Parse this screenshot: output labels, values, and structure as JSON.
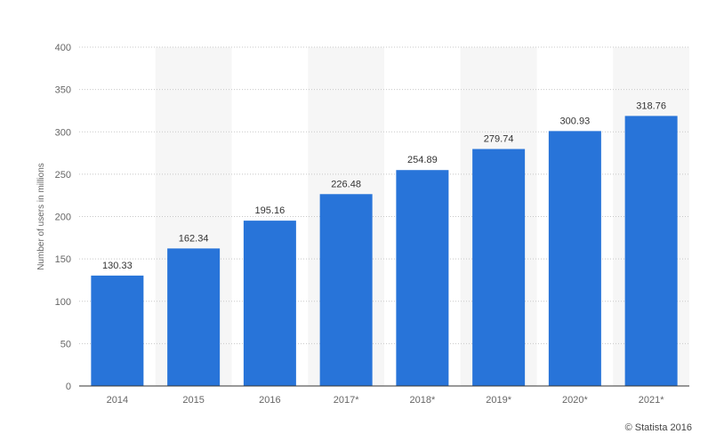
{
  "chart_data": {
    "type": "bar",
    "categories": [
      "2014",
      "2015",
      "2016",
      "2017*",
      "2018*",
      "2019*",
      "2020*",
      "2021*"
    ],
    "values": [
      130.33,
      162.34,
      195.16,
      226.48,
      254.89,
      279.74,
      300.93,
      318.76
    ],
    "value_labels": [
      "130.33",
      "162.34",
      "195.16",
      "226.48",
      "254.89",
      "279.74",
      "300.93",
      "318.76"
    ],
    "ylabel": "Number of users in millions",
    "ylim": [
      0,
      400
    ],
    "yticks": [
      0,
      50,
      100,
      150,
      200,
      250,
      300,
      350,
      400
    ],
    "grid": true,
    "bar_color": "#2874d9",
    "band_color": "#f6f6f6"
  },
  "footer": {
    "credit": "© Statista 2016"
  }
}
